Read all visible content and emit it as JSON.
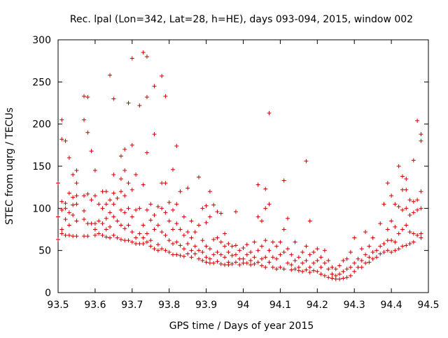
{
  "chart_data": {
    "type": "scatter",
    "title": "Rec. lpal (Lon=342, Lat=28, h=HE), days 093-094, 2015, window 002",
    "xlabel": "GPS time / Days of year 2015",
    "ylabel": "STEC from uqrg / TECUs",
    "xlim": [
      93.5,
      94.5
    ],
    "ylim": [
      0,
      300
    ],
    "x_ticks": [
      "93.5",
      "93.6",
      "93.7",
      "93.8",
      "93.9",
      "94",
      "94.1",
      "94.2",
      "94.3",
      "94.4",
      "94.5"
    ],
    "y_ticks": [
      "0",
      "50",
      "100",
      "150",
      "200",
      "250",
      "300"
    ],
    "grid": false,
    "marker": "+",
    "marker_color": "#cc0000",
    "points": [
      [
        93.5,
        130
      ],
      [
        93.5,
        90
      ],
      [
        93.5,
        63
      ],
      [
        93.51,
        205
      ],
      [
        93.51,
        182
      ],
      [
        93.51,
        108
      ],
      [
        93.51,
        98
      ],
      [
        93.51,
        75
      ],
      [
        93.51,
        70
      ],
      [
        93.52,
        180
      ],
      [
        93.52,
        106
      ],
      [
        93.52,
        100
      ],
      [
        93.52,
        87
      ],
      [
        93.52,
        68
      ],
      [
        93.53,
        160
      ],
      [
        93.53,
        118
      ],
      [
        93.53,
        95
      ],
      [
        93.53,
        80
      ],
      [
        93.53,
        68
      ],
      [
        93.54,
        140
      ],
      [
        93.54,
        113
      ],
      [
        93.54,
        104
      ],
      [
        93.54,
        92
      ],
      [
        93.54,
        67
      ],
      [
        93.55,
        145
      ],
      [
        93.55,
        130
      ],
      [
        93.55,
        115
      ],
      [
        93.55,
        105
      ],
      [
        93.55,
        85
      ],
      [
        93.55,
        67
      ],
      [
        93.57,
        233
      ],
      [
        93.57,
        205
      ],
      [
        93.57,
        115
      ],
      [
        93.57,
        97
      ],
      [
        93.57,
        87
      ],
      [
        93.57,
        67
      ],
      [
        93.58,
        232
      ],
      [
        93.58,
        190
      ],
      [
        93.58,
        117
      ],
      [
        93.58,
        82
      ],
      [
        93.58,
        67
      ],
      [
        93.59,
        168
      ],
      [
        93.59,
        110
      ],
      [
        93.59,
        82
      ],
      [
        93.6,
        145
      ],
      [
        93.6,
        115
      ],
      [
        93.6,
        82
      ],
      [
        93.6,
        75
      ],
      [
        93.6,
        68
      ],
      [
        93.61,
        105
      ],
      [
        93.61,
        85
      ],
      [
        93.61,
        70
      ],
      [
        93.62,
        120
      ],
      [
        93.62,
        100
      ],
      [
        93.62,
        82
      ],
      [
        93.62,
        68
      ],
      [
        93.63,
        120
      ],
      [
        93.63,
        105
      ],
      [
        93.63,
        88
      ],
      [
        93.63,
        75
      ],
      [
        93.63,
        66
      ],
      [
        93.64,
        258
      ],
      [
        93.64,
        110
      ],
      [
        93.64,
        95
      ],
      [
        93.64,
        78
      ],
      [
        93.64,
        65
      ],
      [
        93.65,
        230
      ],
      [
        93.65,
        140
      ],
      [
        93.65,
        118
      ],
      [
        93.65,
        105
      ],
      [
        93.65,
        90
      ],
      [
        93.65,
        68
      ],
      [
        93.66,
        112
      ],
      [
        93.66,
        85
      ],
      [
        93.66,
        65
      ],
      [
        93.67,
        162
      ],
      [
        93.67,
        135
      ],
      [
        93.67,
        120
      ],
      [
        93.67,
        98
      ],
      [
        93.67,
        80
      ],
      [
        93.67,
        63
      ],
      [
        93.68,
        170
      ],
      [
        93.68,
        145
      ],
      [
        93.68,
        115
      ],
      [
        93.68,
        95
      ],
      [
        93.68,
        76
      ],
      [
        93.68,
        62
      ],
      [
        93.69,
        225
      ],
      [
        93.69,
        130
      ],
      [
        93.69,
        100
      ],
      [
        93.69,
        80
      ],
      [
        93.69,
        62
      ],
      [
        93.7,
        278
      ],
      [
        93.7,
        175
      ],
      [
        93.7,
        122
      ],
      [
        93.7,
        90
      ],
      [
        93.7,
        72
      ],
      [
        93.7,
        60
      ],
      [
        93.71,
        140
      ],
      [
        93.71,
        98
      ],
      [
        93.71,
        65
      ],
      [
        93.71,
        58
      ],
      [
        93.72,
        222
      ],
      [
        93.72,
        100
      ],
      [
        93.72,
        70
      ],
      [
        93.72,
        58
      ],
      [
        93.73,
        285
      ],
      [
        93.73,
        128
      ],
      [
        93.73,
        80
      ],
      [
        93.73,
        65
      ],
      [
        93.73,
        58
      ],
      [
        93.74,
        280
      ],
      [
        93.74,
        232
      ],
      [
        93.74,
        166
      ],
      [
        93.74,
        98
      ],
      [
        93.74,
        70
      ],
      [
        93.74,
        60
      ],
      [
        93.75,
        105
      ],
      [
        93.75,
        86
      ],
      [
        93.75,
        62
      ],
      [
        93.75,
        55
      ],
      [
        93.76,
        245
      ],
      [
        93.76,
        188
      ],
      [
        93.76,
        92
      ],
      [
        93.76,
        75
      ],
      [
        93.76,
        52
      ],
      [
        93.77,
        102
      ],
      [
        93.77,
        80
      ],
      [
        93.77,
        57
      ],
      [
        93.77,
        50
      ],
      [
        93.78,
        257
      ],
      [
        93.78,
        130
      ],
      [
        93.78,
        100
      ],
      [
        93.78,
        72
      ],
      [
        93.78,
        52
      ],
      [
        93.79,
        233
      ],
      [
        93.79,
        130
      ],
      [
        93.79,
        95
      ],
      [
        93.79,
        68
      ],
      [
        93.79,
        50
      ],
      [
        93.8,
        107
      ],
      [
        93.8,
        85
      ],
      [
        93.8,
        62
      ],
      [
        93.8,
        48
      ],
      [
        93.81,
        146
      ],
      [
        93.81,
        98
      ],
      [
        93.81,
        75
      ],
      [
        93.81,
        58
      ],
      [
        93.81,
        45
      ],
      [
        93.82,
        174
      ],
      [
        93.82,
        105
      ],
      [
        93.82,
        82
      ],
      [
        93.82,
        60
      ],
      [
        93.82,
        45
      ],
      [
        93.83,
        120
      ],
      [
        93.83,
        75
      ],
      [
        93.83,
        56
      ],
      [
        93.83,
        44
      ],
      [
        93.84,
        90
      ],
      [
        93.84,
        68
      ],
      [
        93.84,
        52
      ],
      [
        93.84,
        43
      ],
      [
        93.85,
        124
      ],
      [
        93.85,
        72
      ],
      [
        93.85,
        58
      ],
      [
        93.85,
        46
      ],
      [
        93.86,
        85
      ],
      [
        93.86,
        65
      ],
      [
        93.86,
        50
      ],
      [
        93.86,
        42
      ],
      [
        93.87,
        72
      ],
      [
        93.87,
        55
      ],
      [
        93.87,
        46
      ],
      [
        93.88,
        137
      ],
      [
        93.88,
        80
      ],
      [
        93.88,
        50
      ],
      [
        93.88,
        40
      ],
      [
        93.89,
        100
      ],
      [
        93.89,
        62
      ],
      [
        93.89,
        48
      ],
      [
        93.89,
        38
      ],
      [
        93.9,
        103
      ],
      [
        93.9,
        83
      ],
      [
        93.9,
        55
      ],
      [
        93.9,
        42
      ],
      [
        93.9,
        36
      ],
      [
        93.91,
        120
      ],
      [
        93.91,
        90
      ],
      [
        93.91,
        52
      ],
      [
        93.91,
        40
      ],
      [
        93.91,
        35
      ],
      [
        93.92,
        104
      ],
      [
        93.92,
        63
      ],
      [
        93.92,
        45
      ],
      [
        93.92,
        35
      ],
      [
        93.93,
        96
      ],
      [
        93.93,
        65
      ],
      [
        93.93,
        48
      ],
      [
        93.93,
        37
      ],
      [
        93.94,
        94
      ],
      [
        93.94,
        60
      ],
      [
        93.94,
        45
      ],
      [
        93.94,
        34
      ],
      [
        93.95,
        70
      ],
      [
        93.95,
        55
      ],
      [
        93.95,
        42
      ],
      [
        93.95,
        33
      ],
      [
        93.96,
        58
      ],
      [
        93.96,
        48
      ],
      [
        93.96,
        36
      ],
      [
        93.96,
        33
      ],
      [
        93.97,
        55
      ],
      [
        93.97,
        44
      ],
      [
        93.97,
        34
      ],
      [
        93.98,
        96
      ],
      [
        93.98,
        56
      ],
      [
        93.98,
        45
      ],
      [
        93.98,
        36
      ],
      [
        93.99,
        50
      ],
      [
        93.99,
        40
      ],
      [
        93.99,
        33
      ],
      [
        94,
        53
      ],
      [
        94,
        40
      ],
      [
        94,
        35
      ],
      [
        94.01,
        57
      ],
      [
        94.01,
        45
      ],
      [
        94.01,
        35
      ],
      [
        94.02,
        48
      ],
      [
        94.02,
        38
      ],
      [
        94.02,
        33
      ],
      [
        94.03,
        60
      ],
      [
        94.03,
        42
      ],
      [
        94.03,
        34
      ],
      [
        94.04,
        128
      ],
      [
        94.04,
        90
      ],
      [
        94.04,
        50
      ],
      [
        94.04,
        36
      ],
      [
        94.05,
        85
      ],
      [
        94.05,
        55
      ],
      [
        94.05,
        40
      ],
      [
        94.05,
        32
      ],
      [
        94.06,
        123
      ],
      [
        94.06,
        100
      ],
      [
        94.06,
        62
      ],
      [
        94.06,
        42
      ],
      [
        94.06,
        30
      ],
      [
        94.07,
        213
      ],
      [
        94.07,
        105
      ],
      [
        94.07,
        50
      ],
      [
        94.07,
        36
      ],
      [
        94.08,
        60
      ],
      [
        94.08,
        42
      ],
      [
        94.08,
        30
      ],
      [
        94.09,
        55
      ],
      [
        94.09,
        40
      ],
      [
        94.09,
        28
      ],
      [
        94.1,
        60
      ],
      [
        94.1,
        45
      ],
      [
        94.1,
        30
      ],
      [
        94.11,
        133
      ],
      [
        94.11,
        75
      ],
      [
        94.11,
        48
      ],
      [
        94.11,
        28
      ],
      [
        94.12,
        88
      ],
      [
        94.12,
        52
      ],
      [
        94.12,
        35
      ],
      [
        94.13,
        45
      ],
      [
        94.13,
        33
      ],
      [
        94.13,
        27
      ],
      [
        94.14,
        60
      ],
      [
        94.14,
        38
      ],
      [
        94.14,
        28
      ],
      [
        94.15,
        42
      ],
      [
        94.15,
        30
      ],
      [
        94.15,
        26
      ],
      [
        94.16,
        48
      ],
      [
        94.16,
        35
      ],
      [
        94.16,
        25
      ],
      [
        94.17,
        156
      ],
      [
        94.17,
        55
      ],
      [
        94.17,
        38
      ],
      [
        94.17,
        27
      ],
      [
        94.18,
        85
      ],
      [
        94.18,
        45
      ],
      [
        94.18,
        30
      ],
      [
        94.18,
        24
      ],
      [
        94.19,
        48
      ],
      [
        94.19,
        35
      ],
      [
        94.19,
        26
      ],
      [
        94.2,
        52
      ],
      [
        94.2,
        38
      ],
      [
        94.2,
        25
      ],
      [
        94.21,
        42
      ],
      [
        94.21,
        30
      ],
      [
        94.21,
        22
      ],
      [
        94.22,
        50
      ],
      [
        94.22,
        35
      ],
      [
        94.22,
        20
      ],
      [
        94.23,
        38
      ],
      [
        94.23,
        28
      ],
      [
        94.23,
        18
      ],
      [
        94.24,
        30
      ],
      [
        94.24,
        22
      ],
      [
        94.24,
        17
      ],
      [
        94.25,
        28
      ],
      [
        94.25,
        20
      ],
      [
        94.25,
        16
      ],
      [
        94.26,
        32
      ],
      [
        94.26,
        22
      ],
      [
        94.26,
        16
      ],
      [
        94.27,
        38
      ],
      [
        94.27,
        25
      ],
      [
        94.27,
        17
      ],
      [
        94.28,
        40
      ],
      [
        94.28,
        28
      ],
      [
        94.28,
        18
      ],
      [
        94.29,
        48
      ],
      [
        94.29,
        30
      ],
      [
        94.29,
        20
      ],
      [
        94.3,
        65
      ],
      [
        94.3,
        35
      ],
      [
        94.3,
        25
      ],
      [
        94.31,
        40
      ],
      [
        94.31,
        30
      ],
      [
        94.32,
        52
      ],
      [
        94.32,
        38
      ],
      [
        94.32,
        30
      ],
      [
        94.33,
        72
      ],
      [
        94.33,
        45
      ],
      [
        94.33,
        35
      ],
      [
        94.34,
        55
      ],
      [
        94.34,
        42
      ],
      [
        94.34,
        36
      ],
      [
        94.35,
        65
      ],
      [
        94.35,
        48
      ],
      [
        94.35,
        40
      ],
      [
        94.36,
        50
      ],
      [
        94.36,
        42
      ],
      [
        94.37,
        82
      ],
      [
        94.37,
        55
      ],
      [
        94.37,
        46
      ],
      [
        94.38,
        105
      ],
      [
        94.38,
        58
      ],
      [
        94.38,
        48
      ],
      [
        94.39,
        130
      ],
      [
        94.39,
        75
      ],
      [
        94.39,
        62
      ],
      [
        94.39,
        50
      ],
      [
        94.4,
        115
      ],
      [
        94.4,
        85
      ],
      [
        94.4,
        62
      ],
      [
        94.4,
        48
      ],
      [
        94.41,
        105
      ],
      [
        94.41,
        78
      ],
      [
        94.41,
        60
      ],
      [
        94.41,
        50
      ],
      [
        94.42,
        150
      ],
      [
        94.42,
        102
      ],
      [
        94.42,
        70
      ],
      [
        94.42,
        52
      ],
      [
        94.43,
        138
      ],
      [
        94.43,
        122
      ],
      [
        94.43,
        98
      ],
      [
        94.43,
        75
      ],
      [
        94.43,
        55
      ],
      [
        94.44,
        135
      ],
      [
        94.44,
        122
      ],
      [
        94.44,
        100
      ],
      [
        94.44,
        80
      ],
      [
        94.44,
        56
      ],
      [
        94.45,
        110
      ],
      [
        94.45,
        92
      ],
      [
        94.45,
        72
      ],
      [
        94.45,
        58
      ],
      [
        94.46,
        157
      ],
      [
        94.46,
        108
      ],
      [
        94.46,
        95
      ],
      [
        94.46,
        70
      ],
      [
        94.46,
        60
      ],
      [
        94.47,
        204
      ],
      [
        94.47,
        110
      ],
      [
        94.47,
        98
      ],
      [
        94.47,
        68
      ],
      [
        94.48,
        188
      ],
      [
        94.48,
        180
      ],
      [
        94.48,
        120
      ],
      [
        94.48,
        100
      ],
      [
        94.48,
        70
      ],
      [
        94.48,
        65
      ]
    ]
  }
}
